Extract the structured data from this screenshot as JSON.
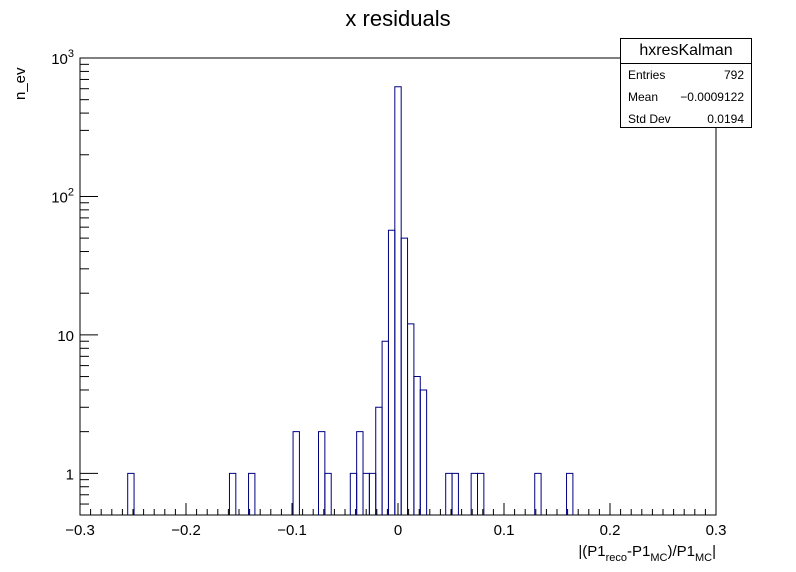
{
  "chart_data": {
    "type": "histogram",
    "title": "x residuals",
    "ylabel": "n_ev",
    "xlabel_parts": {
      "prefix": "|(P1",
      "sub1": "reco",
      "mid": "-P1",
      "sub2": "MC",
      "mid2": ")/P1",
      "sub3": "MC",
      "suffix": "|"
    },
    "xlim": [
      -0.3,
      0.3
    ],
    "ylim": [
      0.5,
      1000
    ],
    "yscale": "log",
    "bin_width": 0.006,
    "x_ticks": [
      {
        "v": -0.3,
        "label": "−0.3"
      },
      {
        "v": -0.2,
        "label": "−0.2"
      },
      {
        "v": -0.1,
        "label": "−0.1"
      },
      {
        "v": 0,
        "label": "0"
      },
      {
        "v": 0.1,
        "label": "0.1"
      },
      {
        "v": 0.2,
        "label": "0.2"
      },
      {
        "v": 0.3,
        "label": "0.3"
      }
    ],
    "y_ticks": [
      {
        "v": 1,
        "base": "1",
        "exp": ""
      },
      {
        "v": 10,
        "base": "10",
        "exp": ""
      },
      {
        "v": 100,
        "base": "10",
        "exp": "2"
      },
      {
        "v": 1000,
        "base": "10",
        "exp": "3"
      }
    ],
    "bins": [
      {
        "x": -0.252,
        "y": 1
      },
      {
        "x": -0.156,
        "y": 1
      },
      {
        "x": -0.138,
        "y": 1
      },
      {
        "x": -0.096,
        "y": 2
      },
      {
        "x": -0.072,
        "y": 2
      },
      {
        "x": -0.066,
        "y": 1
      },
      {
        "x": -0.042,
        "y": 1
      },
      {
        "x": -0.036,
        "y": 2
      },
      {
        "x": -0.03,
        "y": 1
      },
      {
        "x": -0.024,
        "y": 1
      },
      {
        "x": -0.018,
        "y": 3
      },
      {
        "x": -0.012,
        "y": 9
      },
      {
        "x": -0.006,
        "y": 57
      },
      {
        "x": 0.0,
        "y": 620
      },
      {
        "x": 0.006,
        "y": 50
      },
      {
        "x": 0.012,
        "y": 12
      },
      {
        "x": 0.018,
        "y": 5
      },
      {
        "x": 0.024,
        "y": 4
      },
      {
        "x": 0.048,
        "y": 1
      },
      {
        "x": 0.054,
        "y": 1
      },
      {
        "x": 0.072,
        "y": 1
      },
      {
        "x": 0.078,
        "y": 1
      },
      {
        "x": 0.132,
        "y": 1
      },
      {
        "x": 0.162,
        "y": 1
      }
    ],
    "line_color": "#000080",
    "stats": {
      "name": "hxresKalman",
      "rows": [
        {
          "label": "Entries",
          "value": "792"
        },
        {
          "label": "Mean",
          "value": "−0.0009122"
        },
        {
          "label": "Std Dev",
          "value": "0.0194"
        }
      ]
    }
  }
}
